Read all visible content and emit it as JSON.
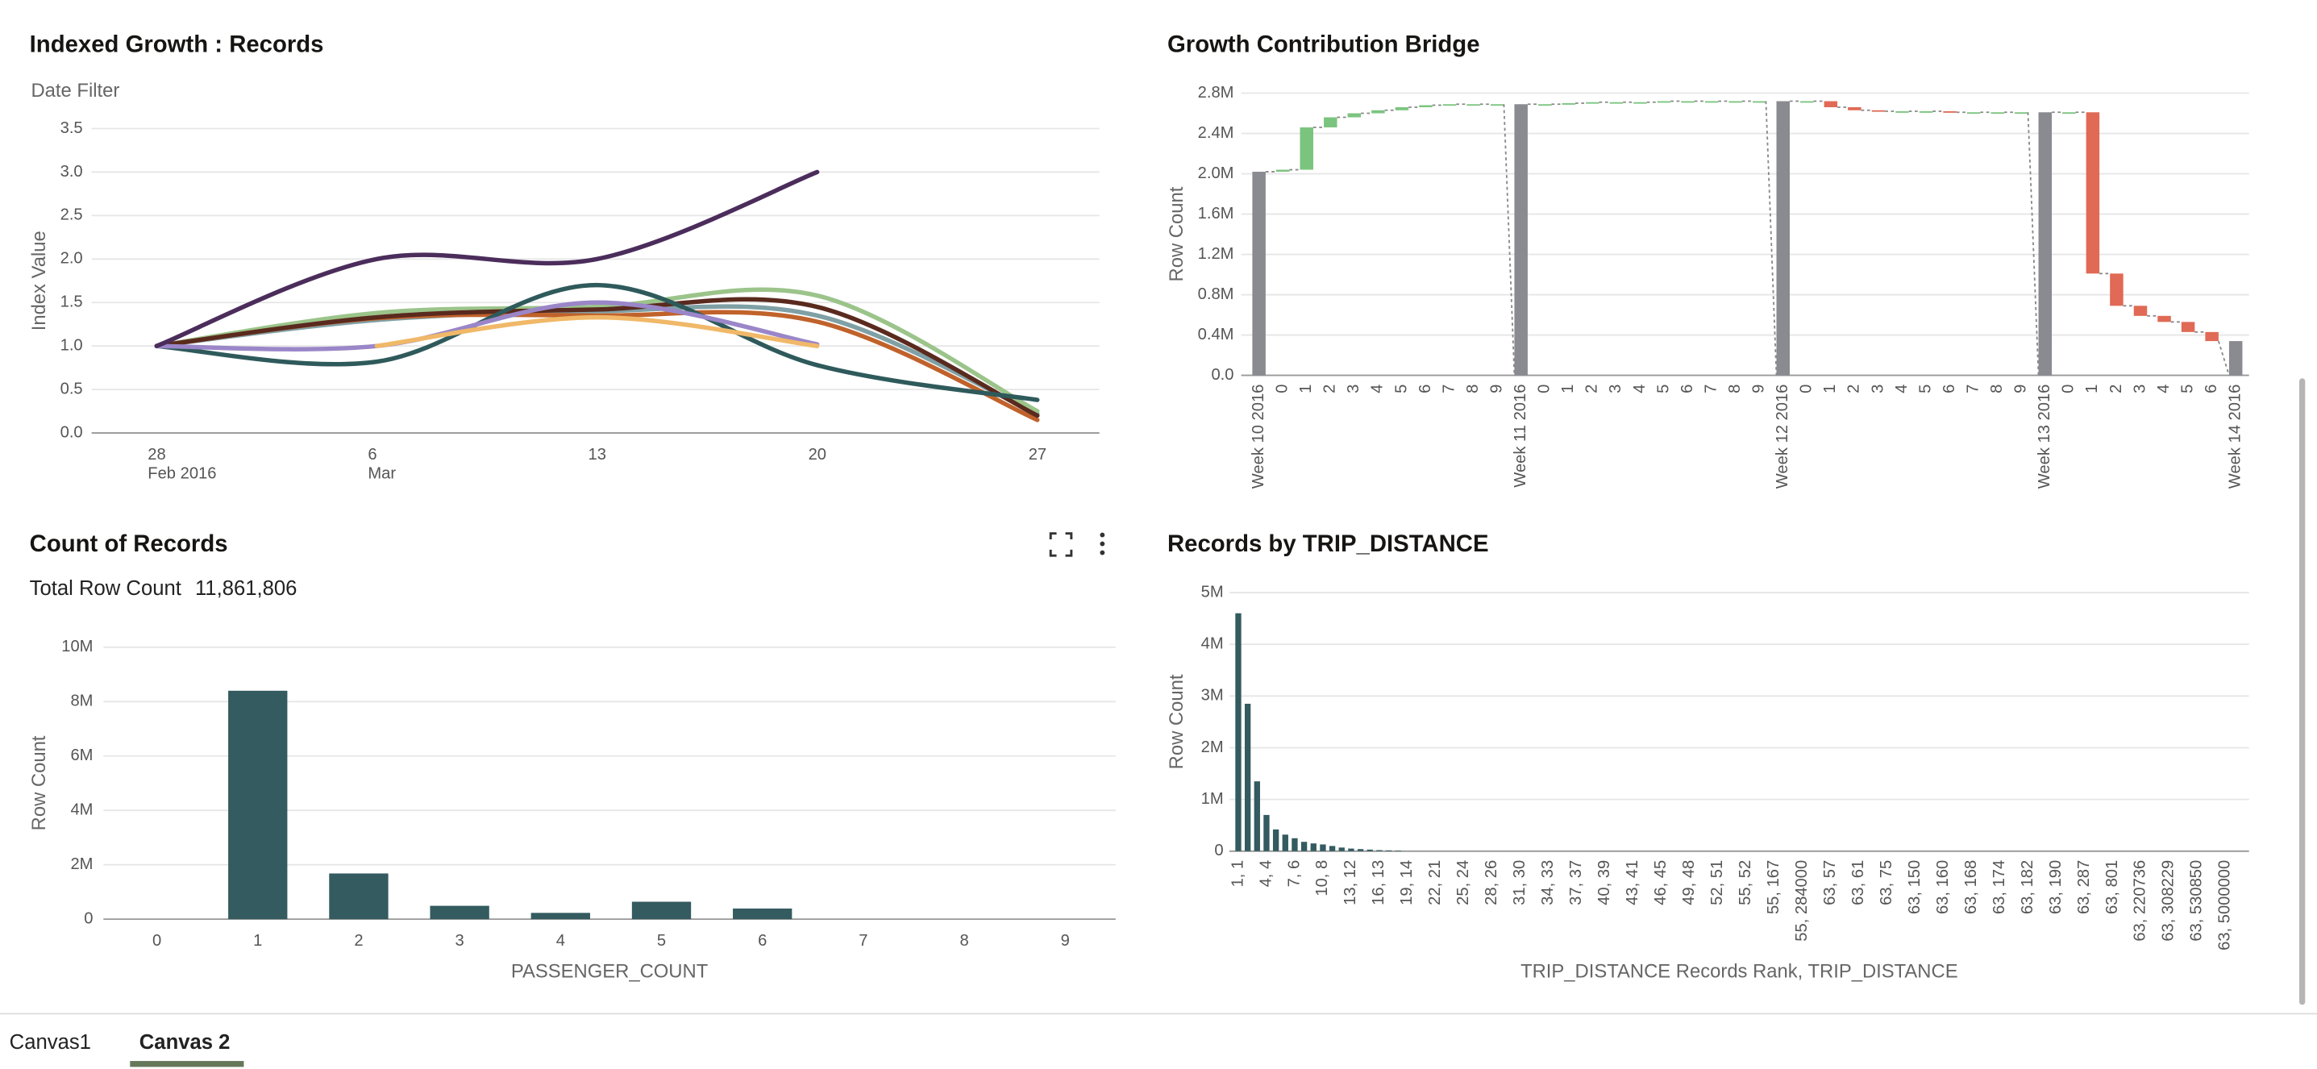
{
  "tabs": [
    "Canvas1",
    "Canvas 2"
  ],
  "chart_data": [
    {
      "type": "line",
      "title": "Indexed Growth : Records",
      "filter_label": "Date Filter",
      "y_label": "Index Value",
      "categories": [
        "28",
        "6",
        "13",
        "20",
        "27"
      ],
      "category_sublabels": [
        "Feb 2016",
        "Mar",
        null,
        null,
        null
      ],
      "ylim": [
        0,
        3.5
      ],
      "yticks": [
        {
          "value": 0,
          "label": "0.0"
        },
        {
          "value": 0.5,
          "label": "0.5"
        },
        {
          "value": 1,
          "label": "1.0"
        },
        {
          "value": 1.5,
          "label": "1.5"
        },
        {
          "value": 2,
          "label": "2.0"
        },
        {
          "value": 2.5,
          "label": "2.5"
        },
        {
          "value": 3,
          "label": "3.0"
        },
        {
          "value": 3.5,
          "label": "3.5"
        }
      ],
      "grid": true,
      "series": [
        {
          "color": "#7fa0a5",
          "values": [
            1,
            1.3,
            1.4,
            1.35,
            0.22
          ]
        },
        {
          "color": "#9bc48a",
          "values": [
            1,
            1.38,
            1.45,
            1.58,
            0.25
          ]
        },
        {
          "color": "#c0622b",
          "values": [
            1,
            1.32,
            1.35,
            1.28,
            0.15
          ]
        },
        {
          "color": "#5a2a1e",
          "values": [
            1,
            1.33,
            1.42,
            1.45,
            0.2
          ]
        },
        {
          "color": "#2f5a5c",
          "values": [
            1,
            0.82,
            1.7,
            0.78,
            0.38
          ]
        },
        {
          "color": "#9a86c8",
          "values": [
            1,
            1,
            1.5,
            1.02,
            null
          ]
        },
        {
          "color": "#f0b868",
          "values": [
            null,
            1,
            1.33,
            1,
            null
          ]
        },
        {
          "color": "#4b2d5c",
          "values": [
            1,
            2,
            2,
            3,
            null
          ]
        }
      ]
    },
    {
      "type": "waterfall",
      "title": "Growth Contribution Bridge",
      "y_label": "Row Count",
      "categories": [
        "Week 10 2016",
        "0",
        "1",
        "2",
        "3",
        "4",
        "5",
        "6",
        "7",
        "8",
        "9",
        "Week 11 2016",
        "0",
        "1",
        "2",
        "3",
        "4",
        "5",
        "6",
        "7",
        "8",
        "9",
        "Week 12 2016",
        "0",
        "1",
        "2",
        "3",
        "4",
        "5",
        "6",
        "7",
        "8",
        "9",
        "Week 13 2016",
        "0",
        "1",
        "2",
        "3",
        "4",
        "5",
        "6",
        "Week 14 2016"
      ],
      "values": [
        2020000,
        20000,
        420000,
        100000,
        40000,
        30000,
        30000,
        20000,
        10000,
        0,
        0,
        2690000,
        0,
        10000,
        10000,
        0,
        0,
        10000,
        0,
        0,
        0,
        0,
        2720000,
        0,
        -60000,
        -30000,
        -10000,
        0,
        0,
        -10000,
        0,
        0,
        0,
        2610000,
        0,
        -1600000,
        -320000,
        -100000,
        -60000,
        -100000,
        -90000,
        340000
      ],
      "bar_kinds": [
        "total",
        "delta",
        "delta",
        "delta",
        "delta",
        "delta",
        "delta",
        "delta",
        "delta",
        "delta",
        "delta",
        "total",
        "delta",
        "delta",
        "delta",
        "delta",
        "delta",
        "delta",
        "delta",
        "delta",
        "delta",
        "delta",
        "total",
        "delta",
        "delta",
        "delta",
        "delta",
        "delta",
        "delta",
        "delta",
        "delta",
        "delta",
        "delta",
        "total",
        "delta",
        "delta",
        "delta",
        "delta",
        "delta",
        "delta",
        "delta",
        "total"
      ],
      "total_color": "#8a8b90",
      "increase_color": "#7bc47f",
      "decrease_color": "#e06a55",
      "ylim": [
        0,
        2800000
      ],
      "yticks": [
        {
          "value": 0,
          "label": "0.0"
        },
        {
          "value": 400000,
          "label": "0.4M"
        },
        {
          "value": 800000,
          "label": "0.8M"
        },
        {
          "value": 1200000,
          "label": "1.2M"
        },
        {
          "value": 1600000,
          "label": "1.6M"
        },
        {
          "value": 2000000,
          "label": "2.0M"
        },
        {
          "value": 2400000,
          "label": "2.4M"
        },
        {
          "value": 2800000,
          "label": "2.8M"
        }
      ],
      "grid": true
    },
    {
      "type": "bar",
      "title": "Count of Records",
      "summary_label": "Total Row Count",
      "summary_value": {
        "value": 11861806,
        "label": "11,861,806"
      },
      "x_label": "PASSENGER_COUNT",
      "y_label": "Row Count",
      "categories": [
        "0",
        "1",
        "2",
        "3",
        "4",
        "5",
        "6",
        "7",
        "8",
        "9"
      ],
      "values": [
        0,
        8400000,
        1680000,
        490000,
        230000,
        640000,
        390000,
        0,
        0,
        0
      ],
      "color": "#335b60",
      "ylim": [
        0,
        10000000
      ],
      "yticks": [
        0,
        {
          "value": 2000000,
          "label": "2M"
        },
        {
          "value": 4000000,
          "label": "4M"
        },
        {
          "value": 6000000,
          "label": "6M"
        },
        {
          "value": 8000000,
          "label": "8M"
        },
        {
          "value": 10000000,
          "label": "10M"
        }
      ],
      "grid": true
    },
    {
      "type": "bar",
      "title": "Records by TRIP_DISTANCE",
      "x_label": "TRIP_DISTANCE Records Rank, TRIP_DISTANCE",
      "y_label": "Row Count",
      "categories": [
        "1, 1",
        null,
        null,
        "4, 4",
        null,
        null,
        "7, 6",
        null,
        null,
        "10, 8",
        null,
        null,
        "13, 12",
        null,
        null,
        "16, 13",
        null,
        null,
        "19, 14",
        null,
        null,
        "22, 21",
        null,
        null,
        "25, 24",
        null,
        null,
        "28, 26",
        null,
        null,
        "31, 30",
        null,
        null,
        "34, 33",
        null,
        null,
        "37, 37",
        null,
        null,
        "40, 39",
        null,
        null,
        "43, 41",
        null,
        null,
        "46, 45",
        null,
        null,
        "49, 48",
        null,
        null,
        "52, 51",
        null,
        null,
        "55, 52",
        null,
        null,
        "55, 167",
        null,
        null,
        "55, 284000",
        null,
        null,
        "63, 57",
        null,
        null,
        "63, 61",
        null,
        null,
        "63, 75",
        null,
        null,
        "63, 150",
        null,
        null,
        "63, 160",
        null,
        null,
        "63, 168",
        null,
        null,
        "63, 174",
        null,
        null,
        "63, 182",
        null,
        null,
        "63, 190",
        null,
        null,
        "63, 287",
        null,
        null,
        "63, 801",
        null,
        null,
        "63, 220736",
        null,
        null,
        "63, 308229",
        null,
        null,
        "63, 530850",
        null,
        null,
        "63, 5000000"
      ],
      "values": [
        4600000,
        2850000,
        1350000,
        700000,
        420000,
        320000,
        250000,
        180000,
        150000,
        130000,
        100000,
        70000,
        50000,
        40000,
        30000,
        20000,
        15000,
        10000,
        0,
        0,
        0,
        0,
        0,
        0,
        0,
        0,
        0,
        0,
        0,
        0,
        0,
        0,
        0,
        0,
        0,
        0,
        0,
        0,
        0,
        0,
        0,
        0,
        0,
        0,
        0,
        0,
        0,
        0,
        0,
        0,
        0,
        0,
        0,
        0,
        0,
        0,
        0,
        0,
        0,
        0,
        0,
        0,
        0,
        0,
        0,
        0,
        0,
        0,
        0,
        0,
        0,
        0,
        0,
        0,
        0,
        0,
        0,
        0,
        0,
        0,
        0,
        0,
        0,
        0,
        0,
        0,
        0,
        0,
        0,
        0,
        0,
        0,
        0,
        0,
        0,
        0,
        0,
        0,
        0,
        0,
        0,
        0,
        0,
        0,
        0,
        0
      ],
      "color": "#335b60",
      "ylim": [
        0,
        5000000
      ],
      "yticks": [
        0,
        {
          "value": 1000000,
          "label": "1M"
        },
        {
          "value": 2000000,
          "label": "2M"
        },
        {
          "value": 3000000,
          "label": "3M"
        },
        {
          "value": 4000000,
          "label": "4M"
        },
        {
          "value": 5000000,
          "label": "5M"
        }
      ],
      "grid": true
    }
  ]
}
